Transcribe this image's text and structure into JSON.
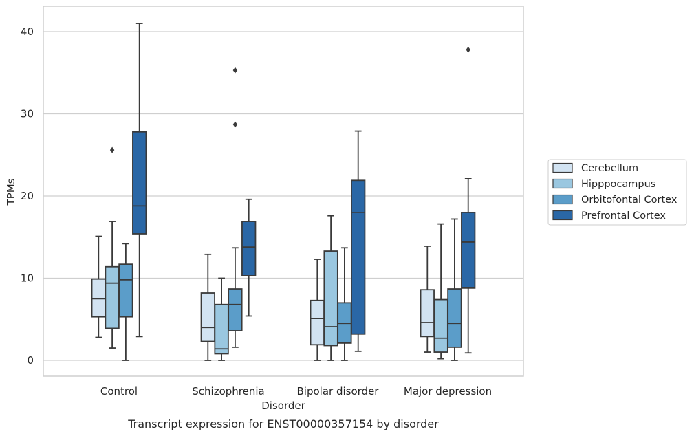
{
  "chart_data": {
    "type": "box",
    "xlabel": "Disorder",
    "ylabel": "TPMs",
    "caption": "Transcript expression for ENST00000357154 by disorder",
    "ylim": [
      -2,
      43
    ],
    "yticks": [
      0,
      10,
      20,
      30,
      40
    ],
    "categories": [
      "Control",
      "Schizophrenia",
      "Bipolar disorder",
      "Major depression"
    ],
    "legend_position": "center-right",
    "grid": "horizontal",
    "series": [
      {
        "name": "Cerebellum",
        "color": "#d2e3f2",
        "boxes": [
          {
            "whisker_low": 2.8,
            "q1": 5.3,
            "median": 7.5,
            "q3": 9.9,
            "whisker_high": 15.1,
            "outliers": []
          },
          {
            "whisker_low": 0.0,
            "q1": 2.3,
            "median": 4.0,
            "q3": 8.2,
            "whisker_high": 12.9,
            "outliers": []
          },
          {
            "whisker_low": 0.0,
            "q1": 1.9,
            "median": 5.1,
            "q3": 7.3,
            "whisker_high": 12.3,
            "outliers": []
          },
          {
            "whisker_low": 1.0,
            "q1": 2.9,
            "median": 4.6,
            "q3": 8.6,
            "whisker_high": 13.9,
            "outliers": []
          }
        ]
      },
      {
        "name": "Hipppocampus",
        "color": "#9ac7e0",
        "boxes": [
          {
            "whisker_low": 1.5,
            "q1": 3.9,
            "median": 9.4,
            "q3": 11.4,
            "whisker_high": 16.9,
            "outliers": [
              25.6
            ]
          },
          {
            "whisker_low": 0.0,
            "q1": 0.8,
            "median": 1.4,
            "q3": 6.8,
            "whisker_high": 10.0,
            "outliers": []
          },
          {
            "whisker_low": 0.0,
            "q1": 1.8,
            "median": 4.1,
            "q3": 13.3,
            "whisker_high": 17.6,
            "outliers": []
          },
          {
            "whisker_low": 0.2,
            "q1": 1.0,
            "median": 2.7,
            "q3": 7.4,
            "whisker_high": 16.6,
            "outliers": []
          }
        ]
      },
      {
        "name": "Orbitofontal Cortex",
        "color": "#5b9dc9",
        "boxes": [
          {
            "whisker_low": 0.0,
            "q1": 5.3,
            "median": 9.8,
            "q3": 11.7,
            "whisker_high": 14.2,
            "outliers": []
          },
          {
            "whisker_low": 1.6,
            "q1": 3.6,
            "median": 6.8,
            "q3": 8.7,
            "whisker_high": 13.7,
            "outliers": [
              28.7,
              35.3
            ]
          },
          {
            "whisker_low": 0.0,
            "q1": 2.1,
            "median": 4.5,
            "q3": 7.0,
            "whisker_high": 13.7,
            "outliers": []
          },
          {
            "whisker_low": 0.0,
            "q1": 1.6,
            "median": 4.5,
            "q3": 8.7,
            "whisker_high": 17.2,
            "outliers": []
          }
        ]
      },
      {
        "name": "Prefrontal Cortex",
        "color": "#2a67a6",
        "boxes": [
          {
            "whisker_low": 2.9,
            "q1": 15.4,
            "median": 18.8,
            "q3": 27.8,
            "whisker_high": 41.0,
            "outliers": []
          },
          {
            "whisker_low": 5.4,
            "q1": 10.3,
            "median": 13.8,
            "q3": 16.9,
            "whisker_high": 19.6,
            "outliers": []
          },
          {
            "whisker_low": 1.1,
            "q1": 3.2,
            "median": 18.0,
            "q3": 21.9,
            "whisker_high": 27.9,
            "outliers": []
          },
          {
            "whisker_low": 0.9,
            "q1": 8.8,
            "median": 14.4,
            "q3": 18.0,
            "whisker_high": 22.1,
            "outliers": [
              37.8
            ]
          }
        ]
      }
    ]
  },
  "colors": {
    "line": "#3a3a3a",
    "grid": "#cfcfcf",
    "frame": "#cfcfcf"
  }
}
